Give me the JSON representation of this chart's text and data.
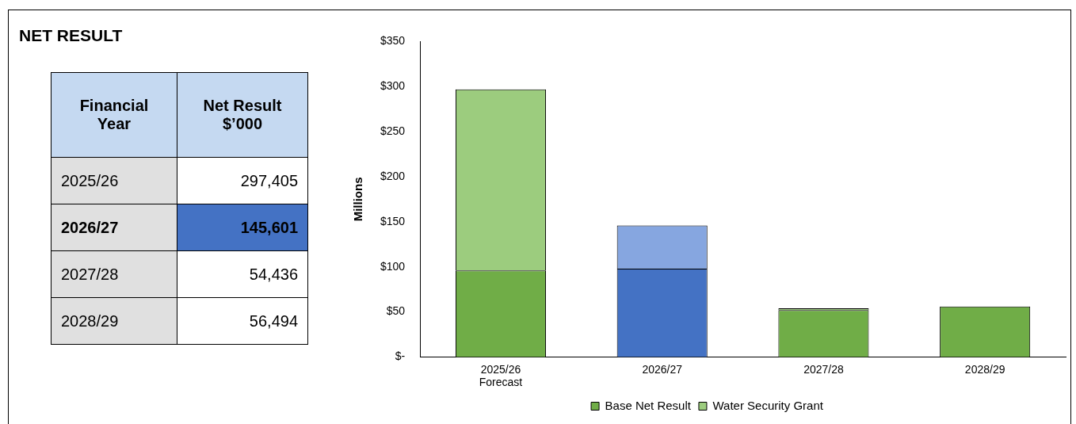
{
  "chart_data": {
    "type": "bar",
    "title": "NET RESULT",
    "ylabel": "Millions",
    "stacked": true,
    "categories": [
      "2025/26\nForecast",
      "2026/27",
      "2027/28",
      "2028/29"
    ],
    "series": [
      {
        "name": "Base Net Result",
        "color": "#70ad47",
        "colors": [
          "#70ad47",
          "#4472c4",
          "#70ad47",
          "#70ad47"
        ],
        "values": [
          96,
          98,
          52,
          56
        ]
      },
      {
        "name": "Water Security Grant",
        "color": "#9ccc7e",
        "colors": [
          "#9ccc7e",
          "#86a6e0",
          "#9ccc7e",
          "#9ccc7e"
        ],
        "values": [
          201,
          48,
          2,
          null
        ]
      }
    ],
    "ylim": [
      0,
      350
    ],
    "yticks": [
      {
        "value": 0,
        "label": "$-"
      },
      {
        "value": 50,
        "label": "$50"
      },
      {
        "value": 100,
        "label": "$100"
      },
      {
        "value": 150,
        "label": "$150"
      },
      {
        "value": 200,
        "label": "$200"
      },
      {
        "value": 250,
        "label": "$250"
      },
      {
        "value": 300,
        "label": "$300"
      },
      {
        "value": 350,
        "label": "$350"
      }
    ],
    "grid": false,
    "legend": "bottom",
    "annotations": [
      "Financial Year",
      "Net Result $’000",
      "2025/26",
      "297,405",
      "2026/27",
      "145,601",
      "2027/28",
      "54,436",
      "2028/29",
      "56,494"
    ]
  }
}
